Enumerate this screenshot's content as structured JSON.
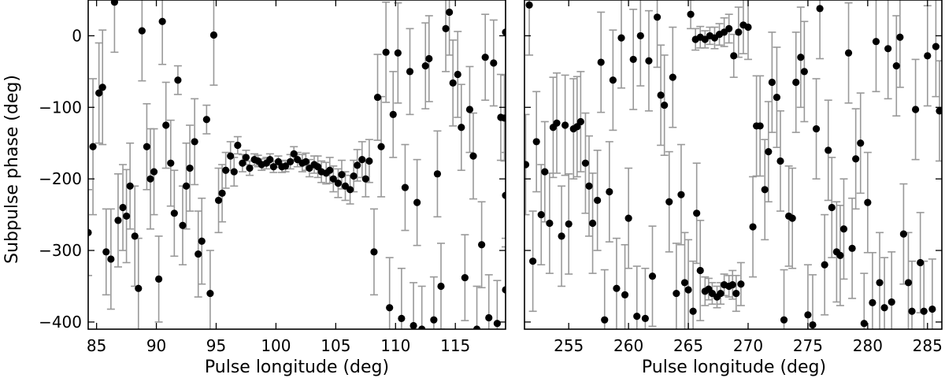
{
  "chart_data": {
    "type": "scatter",
    "ylabel": "Subpulse phase (deg)",
    "ylim": [
      -410,
      50
    ],
    "yticks": [
      0,
      -100,
      -200,
      -300,
      -400
    ],
    "ytick_labels": [
      "0",
      "−100",
      "−200",
      "−300",
      "−400"
    ],
    "errorbar_color": "#999999",
    "marker_color": "#000000",
    "panels": [
      {
        "id": "left",
        "xlabel": "Pulse longitude (deg)",
        "xlim": [
          84.3,
          119.2
        ],
        "xticks": [
          85,
          90,
          95,
          100,
          105,
          110,
          115
        ],
        "points": [
          [
            84.3,
            -275,
            60
          ],
          [
            84.7,
            -155,
            95
          ],
          [
            85.2,
            -80,
            70
          ],
          [
            85.5,
            -72,
            80
          ],
          [
            85.8,
            -302,
            60
          ],
          [
            86.2,
            -312,
            70
          ],
          [
            86.5,
            47,
            70
          ],
          [
            86.8,
            -258,
            65
          ],
          [
            87.2,
            -240,
            60
          ],
          [
            87.5,
            -252,
            65
          ],
          [
            87.8,
            -210,
            60
          ],
          [
            88.2,
            -280,
            70
          ],
          [
            88.5,
            -353,
            70
          ],
          [
            88.8,
            7,
            70
          ],
          [
            89.2,
            -155,
            60
          ],
          [
            89.5,
            -200,
            70
          ],
          [
            89.8,
            -190,
            60
          ],
          [
            90.2,
            -340,
            60
          ],
          [
            90.5,
            20,
            60
          ],
          [
            90.8,
            -125,
            60
          ],
          [
            91.2,
            -178,
            60
          ],
          [
            91.5,
            -248,
            60
          ],
          [
            91.8,
            -62,
            20
          ],
          [
            92.2,
            -265,
            55
          ],
          [
            92.5,
            -210,
            60
          ],
          [
            92.8,
            -185,
            60
          ],
          [
            93.2,
            -148,
            60
          ],
          [
            93.5,
            -305,
            60
          ],
          [
            93.8,
            -287,
            60
          ],
          [
            94.2,
            -117,
            20
          ],
          [
            94.5,
            -360,
            60
          ],
          [
            94.8,
            1,
            70
          ],
          [
            95.2,
            -230,
            45
          ],
          [
            95.5,
            -220,
            40
          ],
          [
            95.8,
            -188,
            25
          ],
          [
            96.2,
            -168,
            20
          ],
          [
            96.5,
            -190,
            20
          ],
          [
            96.8,
            -153,
            12
          ],
          [
            97.2,
            -178,
            12
          ],
          [
            97.5,
            -170,
            10
          ],
          [
            97.8,
            -185,
            10
          ],
          [
            98.2,
            -173,
            8
          ],
          [
            98.5,
            -175,
            8
          ],
          [
            98.8,
            -180,
            8
          ],
          [
            99.2,
            -178,
            8
          ],
          [
            99.5,
            -173,
            8
          ],
          [
            99.8,
            -183,
            8
          ],
          [
            100.2,
            -176,
            8
          ],
          [
            100.5,
            -183,
            8
          ],
          [
            100.8,
            -182,
            8
          ],
          [
            101.2,
            -176,
            10
          ],
          [
            101.5,
            -165,
            10
          ],
          [
            101.8,
            -173,
            10
          ],
          [
            102.2,
            -178,
            12
          ],
          [
            102.5,
            -176,
            12
          ],
          [
            102.8,
            -185,
            12
          ],
          [
            103.2,
            -180,
            12
          ],
          [
            103.5,
            -183,
            15
          ],
          [
            103.8,
            -190,
            15
          ],
          [
            104.2,
            -192,
            15
          ],
          [
            104.5,
            -188,
            18
          ],
          [
            104.8,
            -200,
            18
          ],
          [
            105.2,
            -206,
            20
          ],
          [
            105.5,
            -194,
            20
          ],
          [
            105.8,
            -210,
            20
          ],
          [
            106.2,
            -215,
            20
          ],
          [
            106.5,
            -196,
            22
          ],
          [
            106.8,
            -181,
            22
          ],
          [
            107.2,
            -173,
            25
          ],
          [
            107.5,
            -200,
            25
          ],
          [
            107.8,
            -175,
            30
          ],
          [
            108.2,
            -302,
            60
          ],
          [
            108.5,
            -86,
            60
          ],
          [
            108.8,
            -155,
            70
          ],
          [
            109.2,
            -23,
            70
          ],
          [
            109.5,
            -380,
            70
          ],
          [
            109.8,
            -110,
            60
          ],
          [
            110.2,
            -24,
            70
          ],
          [
            110.5,
            -395,
            70
          ],
          [
            110.8,
            -212,
            60
          ],
          [
            111.2,
            -50,
            60
          ],
          [
            111.5,
            -405,
            60
          ],
          [
            111.8,
            -233,
            60
          ],
          [
            112.2,
            -410,
            60
          ],
          [
            112.5,
            -42,
            60
          ],
          [
            112.8,
            -32,
            60
          ],
          [
            113.2,
            -397,
            60
          ],
          [
            113.5,
            -193,
            60
          ],
          [
            113.8,
            -350,
            60
          ],
          [
            114.2,
            10,
            60
          ],
          [
            114.5,
            33,
            60
          ],
          [
            114.8,
            -66,
            60
          ],
          [
            115.2,
            -54,
            60
          ],
          [
            115.5,
            -128,
            60
          ],
          [
            115.8,
            -338,
            60
          ],
          [
            116.2,
            -103,
            60
          ],
          [
            116.5,
            -168,
            60
          ],
          [
            116.8,
            -410,
            60
          ],
          [
            117.2,
            -292,
            60
          ],
          [
            117.5,
            -30,
            60
          ],
          [
            117.8,
            -394,
            60
          ],
          [
            118.2,
            -38,
            60
          ],
          [
            118.5,
            -402,
            60
          ],
          [
            118.8,
            -114,
            60
          ],
          [
            119.1,
            -115,
            60
          ],
          [
            119.2,
            -355,
            60
          ],
          [
            119.2,
            5,
            60
          ],
          [
            119.2,
            -223,
            60
          ]
        ]
      },
      {
        "id": "right",
        "xlabel": "Pulse longitude (deg)",
        "xlim": [
          251.3,
          286.2
        ],
        "xticks": [
          255,
          260,
          265,
          270,
          275,
          280,
          285
        ],
        "points": [
          [
            251.4,
            -180,
            70
          ],
          [
            251.7,
            43,
            70
          ],
          [
            252.0,
            -315,
            70
          ],
          [
            252.3,
            -148,
            70
          ],
          [
            252.7,
            -250,
            70
          ],
          [
            253.0,
            -190,
            70
          ],
          [
            253.4,
            -262,
            70
          ],
          [
            253.7,
            -128,
            70
          ],
          [
            254.0,
            -122,
            70
          ],
          [
            254.4,
            -280,
            70
          ],
          [
            254.7,
            -125,
            70
          ],
          [
            255.0,
            -263,
            70
          ],
          [
            255.4,
            -130,
            70
          ],
          [
            255.7,
            -127,
            70
          ],
          [
            256.0,
            -120,
            70
          ],
          [
            256.4,
            -178,
            70
          ],
          [
            256.7,
            -210,
            70
          ],
          [
            257.0,
            -262,
            70
          ],
          [
            257.4,
            -230,
            70
          ],
          [
            257.7,
            -37,
            70
          ],
          [
            258.0,
            -397,
            70
          ],
          [
            258.4,
            -218,
            70
          ],
          [
            258.7,
            -62,
            70
          ],
          [
            259.0,
            -353,
            70
          ],
          [
            259.4,
            -3,
            70
          ],
          [
            259.7,
            -362,
            70
          ],
          [
            260.0,
            -255,
            70
          ],
          [
            260.4,
            -33,
            70
          ],
          [
            260.7,
            -392,
            70
          ],
          [
            261.0,
            0,
            70
          ],
          [
            261.4,
            -395,
            70
          ],
          [
            261.7,
            -35,
            70
          ],
          [
            262.0,
            -336,
            70
          ],
          [
            262.4,
            26,
            70
          ],
          [
            262.7,
            -83,
            70
          ],
          [
            263.0,
            -97,
            70
          ],
          [
            263.4,
            -232,
            70
          ],
          [
            263.7,
            -58,
            70
          ],
          [
            264.0,
            -360,
            70
          ],
          [
            264.4,
            -222,
            70
          ],
          [
            264.7,
            -345,
            70
          ],
          [
            265.0,
            -355,
            70
          ],
          [
            265.4,
            -385,
            70
          ],
          [
            265.7,
            -248,
            70
          ],
          [
            266.0,
            -328,
            70
          ],
          [
            266.4,
            -357,
            20
          ],
          [
            266.7,
            -354,
            15
          ],
          [
            267.0,
            -360,
            15
          ],
          [
            267.4,
            -365,
            15
          ],
          [
            267.7,
            -360,
            15
          ],
          [
            268.0,
            -348,
            15
          ],
          [
            268.4,
            -350,
            15
          ],
          [
            268.7,
            -348,
            20
          ],
          [
            269.0,
            -360,
            25
          ],
          [
            269.4,
            -347,
            30
          ],
          [
            265.2,
            30,
            20
          ],
          [
            265.6,
            -5,
            15
          ],
          [
            266.0,
            -2,
            15
          ],
          [
            266.4,
            -5,
            12
          ],
          [
            266.8,
            0,
            12
          ],
          [
            267.2,
            -3,
            15
          ],
          [
            267.6,
            2,
            15
          ],
          [
            268.0,
            5,
            20
          ],
          [
            268.4,
            10,
            20
          ],
          [
            268.8,
            -28,
            30
          ],
          [
            269.2,
            5,
            35
          ],
          [
            269.6,
            15,
            40
          ],
          [
            270.0,
            12,
            45
          ],
          [
            270.4,
            -267,
            70
          ],
          [
            270.7,
            -126,
            70
          ],
          [
            271.0,
            -126,
            70
          ],
          [
            271.4,
            -215,
            70
          ],
          [
            271.7,
            -162,
            70
          ],
          [
            272.0,
            -65,
            70
          ],
          [
            272.4,
            -86,
            70
          ],
          [
            272.7,
            -175,
            70
          ],
          [
            273.0,
            -397,
            70
          ],
          [
            273.4,
            -252,
            70
          ],
          [
            273.7,
            -255,
            70
          ],
          [
            274.0,
            -65,
            70
          ],
          [
            274.4,
            -30,
            70
          ],
          [
            274.7,
            -50,
            70
          ],
          [
            275.0,
            -390,
            70
          ],
          [
            275.4,
            -404,
            70
          ],
          [
            275.7,
            -130,
            70
          ],
          [
            276.0,
            38,
            70
          ],
          [
            276.4,
            -320,
            70
          ],
          [
            276.7,
            -160,
            70
          ],
          [
            277.0,
            -240,
            70
          ],
          [
            277.4,
            -302,
            70
          ],
          [
            277.7,
            -307,
            70
          ],
          [
            278.0,
            -270,
            70
          ],
          [
            278.4,
            -24,
            70
          ],
          [
            278.7,
            -297,
            70
          ],
          [
            279.0,
            -172,
            70
          ],
          [
            279.4,
            -150,
            70
          ],
          [
            279.7,
            -402,
            70
          ],
          [
            280.0,
            -233,
            70
          ],
          [
            280.4,
            -373,
            70
          ],
          [
            280.7,
            -8,
            70
          ],
          [
            281.0,
            -345,
            70
          ],
          [
            281.4,
            -380,
            70
          ],
          [
            281.7,
            -18,
            70
          ],
          [
            282.0,
            -372,
            70
          ],
          [
            282.4,
            -42,
            70
          ],
          [
            282.7,
            -2,
            70
          ],
          [
            283.0,
            -277,
            70
          ],
          [
            283.4,
            -345,
            70
          ],
          [
            283.7,
            -385,
            70
          ],
          [
            284.0,
            -103,
            70
          ],
          [
            284.4,
            -317,
            70
          ],
          [
            284.7,
            -385,
            70
          ],
          [
            285.0,
            -28,
            70
          ],
          [
            285.4,
            -382,
            70
          ],
          [
            285.7,
            -15,
            70
          ],
          [
            286.0,
            -105,
            70
          ]
        ]
      }
    ]
  }
}
